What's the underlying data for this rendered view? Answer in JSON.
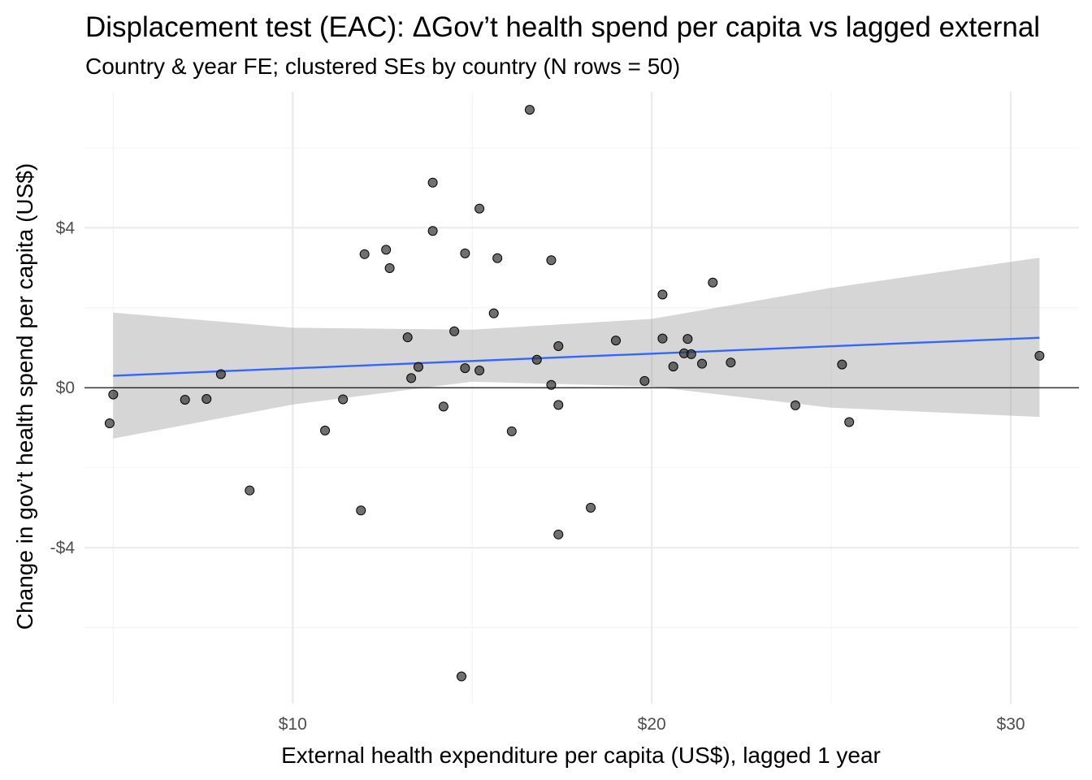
{
  "chart_data": {
    "type": "scatter",
    "title": "Displacement test (EAC): ΔGov’t health spend per capita vs lagged external",
    "subtitle": "Country & year FE; clustered SEs by country (N rows = 50)",
    "xlabel": "External health expenditure per capita (US$), lagged 1 year",
    "ylabel": "Change in gov’t health spend per capita (US$)",
    "xlim": [
      4.2,
      31.9
    ],
    "ylim": [
      -7.9,
      7.4
    ],
    "x_ticks": [
      10,
      20,
      30
    ],
    "x_tick_labels": [
      "$10",
      "$20",
      "$30"
    ],
    "y_ticks": [
      -4,
      0,
      4
    ],
    "y_tick_labels": [
      "-$4",
      "$0",
      "$4"
    ],
    "reference_line_y": 0,
    "grid": true,
    "legend": "none",
    "point_color": "#333333",
    "fit_color": "#3366FF",
    "band_color": "#999999",
    "fit_line": {
      "x": [
        5.0,
        30.8
      ],
      "y": [
        0.3,
        1.25
      ]
    },
    "confidence_band": {
      "x": [
        5.0,
        10.0,
        15.0,
        20.0,
        25.0,
        30.8
      ],
      "lower": [
        -1.27,
        -0.42,
        0.15,
        0.03,
        -0.5,
        -0.73
      ],
      "upper": [
        1.88,
        1.5,
        1.45,
        1.72,
        2.5,
        3.25
      ]
    },
    "points": [
      {
        "x": 4.9,
        "y": -0.89
      },
      {
        "x": 5.0,
        "y": -0.17
      },
      {
        "x": 7.0,
        "y": -0.3
      },
      {
        "x": 7.6,
        "y": -0.28
      },
      {
        "x": 8.0,
        "y": 0.34
      },
      {
        "x": 8.8,
        "y": -2.57
      },
      {
        "x": 10.9,
        "y": -1.07
      },
      {
        "x": 11.4,
        "y": -0.29
      },
      {
        "x": 12.0,
        "y": 3.34
      },
      {
        "x": 11.9,
        "y": -3.07
      },
      {
        "x": 12.6,
        "y": 3.45
      },
      {
        "x": 12.7,
        "y": 2.99
      },
      {
        "x": 13.2,
        "y": 1.26
      },
      {
        "x": 13.3,
        "y": 0.24
      },
      {
        "x": 13.5,
        "y": 0.52
      },
      {
        "x": 13.9,
        "y": 5.13
      },
      {
        "x": 13.9,
        "y": 3.92
      },
      {
        "x": 14.2,
        "y": -0.47
      },
      {
        "x": 14.5,
        "y": 1.41
      },
      {
        "x": 14.8,
        "y": 0.49
      },
      {
        "x": 14.8,
        "y": 3.36
      },
      {
        "x": 14.7,
        "y": -7.22
      },
      {
        "x": 15.2,
        "y": 4.48
      },
      {
        "x": 15.2,
        "y": 0.43
      },
      {
        "x": 15.6,
        "y": 1.86
      },
      {
        "x": 15.7,
        "y": 3.24
      },
      {
        "x": 16.1,
        "y": -1.09
      },
      {
        "x": 16.6,
        "y": 6.95
      },
      {
        "x": 16.8,
        "y": 0.7
      },
      {
        "x": 17.2,
        "y": 3.19
      },
      {
        "x": 17.2,
        "y": 0.07
      },
      {
        "x": 17.4,
        "y": -0.43
      },
      {
        "x": 17.4,
        "y": 1.04
      },
      {
        "x": 17.4,
        "y": -3.67
      },
      {
        "x": 18.3,
        "y": -3.0
      },
      {
        "x": 19.0,
        "y": 1.18
      },
      {
        "x": 19.8,
        "y": 0.17
      },
      {
        "x": 20.3,
        "y": 2.33
      },
      {
        "x": 20.3,
        "y": 1.23
      },
      {
        "x": 20.6,
        "y": 0.53
      },
      {
        "x": 20.9,
        "y": 0.86
      },
      {
        "x": 21.0,
        "y": 1.22
      },
      {
        "x": 21.1,
        "y": 0.84
      },
      {
        "x": 21.4,
        "y": 0.6
      },
      {
        "x": 21.7,
        "y": 2.63
      },
      {
        "x": 22.2,
        "y": 0.63
      },
      {
        "x": 24.0,
        "y": -0.44
      },
      {
        "x": 25.3,
        "y": 0.58
      },
      {
        "x": 25.5,
        "y": -0.86
      },
      {
        "x": 30.8,
        "y": 0.8
      }
    ]
  }
}
